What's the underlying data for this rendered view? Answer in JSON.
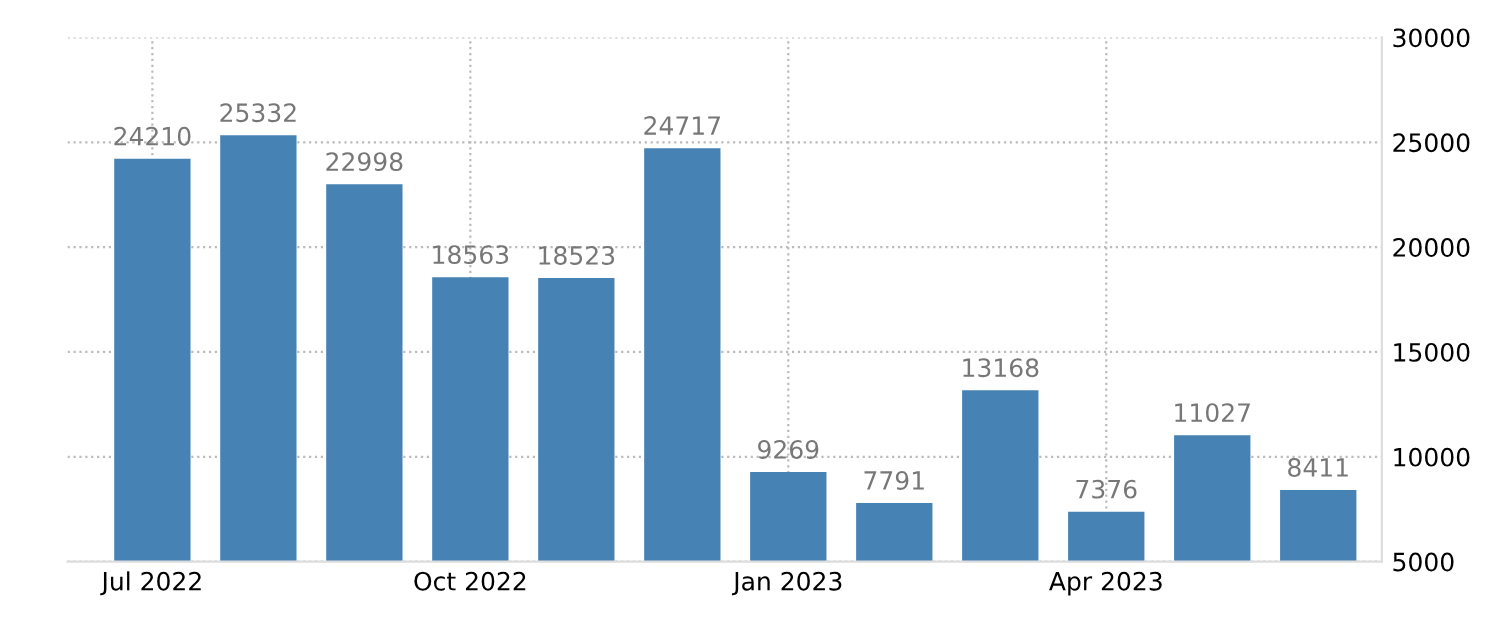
{
  "chart_data": {
    "type": "bar",
    "categories": [
      "Jul 2022",
      null,
      null,
      "Oct 2022",
      null,
      null,
      "Jan 2023",
      null,
      null,
      "Apr 2023",
      null,
      null
    ],
    "values": [
      24210,
      25332,
      22998,
      18563,
      18523,
      24717,
      9269,
      7791,
      13168,
      7376,
      11027,
      8411
    ],
    "color": "#4682b4",
    "data_labels": true,
    "ylim": [
      5000,
      30000
    ],
    "yticks": [
      5000,
      10000,
      15000,
      20000,
      25000,
      30000
    ],
    "grid": true
  }
}
